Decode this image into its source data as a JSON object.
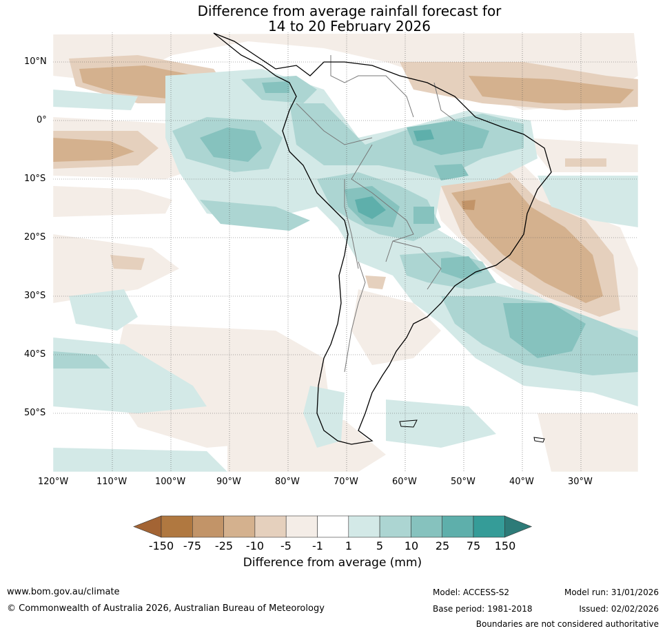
{
  "title_line1": "Difference from average rainfall forecast for",
  "title_line2": "14 to 20 February 2026",
  "lat_labels": [
    "10°N",
    "0°",
    "10°S",
    "20°S",
    "30°S",
    "40°S",
    "50°S"
  ],
  "lon_labels": [
    "120°W",
    "110°W",
    "100°W",
    "90°W",
    "80°W",
    "70°W",
    "60°W",
    "50°W",
    "40°W",
    "30°W"
  ],
  "colorbar": {
    "labels": [
      "-150",
      "-75",
      "-25",
      "-10",
      "-5",
      "-1",
      "1",
      "5",
      "10",
      "25",
      "75",
      "150"
    ],
    "colors": [
      "#a36434",
      "#b07840",
      "#c29468",
      "#d4b18e",
      "#e5d0bd",
      "#f4ede7",
      "#ffffff",
      "#d3e9e7",
      "#acd5d2",
      "#86c2be",
      "#5eafab",
      "#359c98",
      "#2d7b78"
    ],
    "title": "Difference from average (mm)"
  },
  "footer": {
    "website": "www.bom.gov.au/climate",
    "copyright": "© Commonwealth of Australia 2026, Australian Bureau of Meteorology",
    "model": "Model: ACCESS-S2",
    "base_period": "Base period: 1981-2018",
    "model_run": "Model run: 31/01/2026",
    "issued": "Issued: 02/02/2026",
    "disclaimer": "Boundaries are not considered authoritative"
  }
}
